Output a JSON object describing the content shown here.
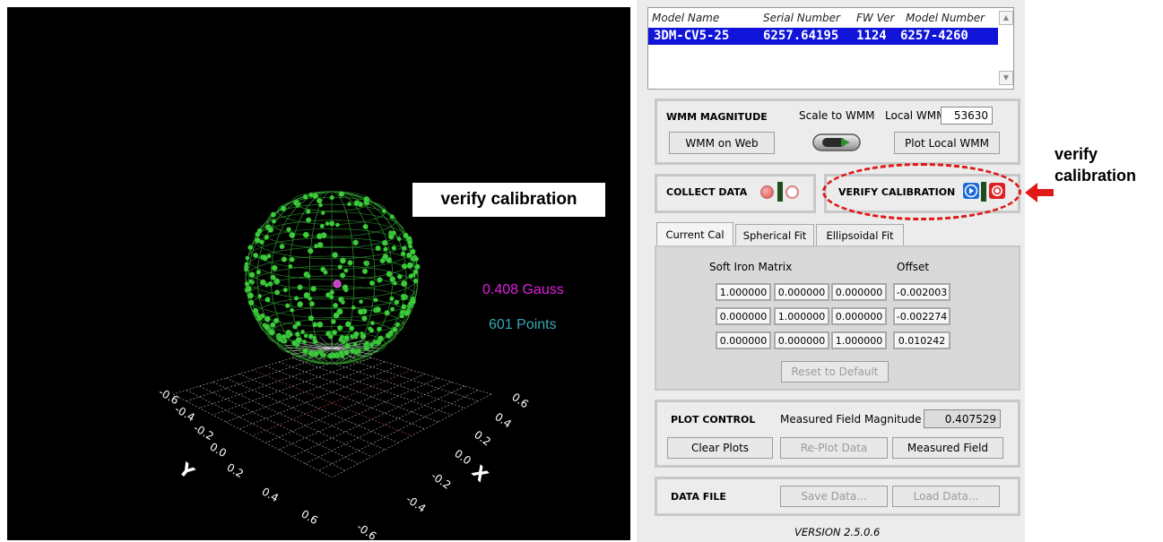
{
  "plot": {
    "callout": "verify calibration",
    "gauss": "0.408 Gauss",
    "points": "601 Points",
    "axis_y_label": "Y",
    "axis_x_label": "X",
    "y_ticks": [
      "-0.6",
      "-0.4",
      "-0.2",
      "0.0",
      "0.2",
      "0.4",
      "0.6"
    ],
    "x_ticks": [
      "0.6",
      "0.4",
      "0.2",
      "0.0",
      "-0.2",
      "-0.4",
      "-0.6"
    ]
  },
  "device_list": {
    "headers": [
      "Model Name",
      "Serial Number",
      "FW Ver",
      "Model Number"
    ],
    "row": [
      "3DM-CV5-25",
      "6257.64195",
      "1124",
      "6257-4260"
    ]
  },
  "wmm": {
    "title": "WMM MAGNITUDE",
    "scale_label": "Scale to WMM",
    "local_label": "Local WMM:",
    "local_value": "53630",
    "web_button": "WMM on Web",
    "plot_button": "Plot Local WMM"
  },
  "collect": {
    "title": "COLLECT DATA"
  },
  "verify": {
    "title": "VERIFY CALIBRATION"
  },
  "tabs": [
    "Current Cal",
    "Spherical Fit",
    "Ellipsoidal Fit"
  ],
  "current_cal": {
    "matrix_label": "Soft Iron Matrix",
    "offset_label": "Offset",
    "matrix": [
      [
        "1.000000",
        "0.000000",
        "0.000000"
      ],
      [
        "0.000000",
        "1.000000",
        "0.000000"
      ],
      [
        "0.000000",
        "0.000000",
        "1.000000"
      ]
    ],
    "offset": [
      "-0.002003",
      "-0.002274",
      "0.010242"
    ],
    "reset_button": "Reset to Default"
  },
  "plot_control": {
    "title": "PLOT CONTROL",
    "measured_label": "Measured Field Magnitude",
    "measured_value": "0.407529",
    "clear_button": "Clear Plots",
    "replot_button": "Re-Plot Data",
    "measured_button": "Measured Field"
  },
  "data_file": {
    "title": "DATA FILE",
    "save_button": "Save Data...",
    "load_button": "Load Data..."
  },
  "version": "VERSION  2.5.0.6",
  "annotation": {
    "right_note": "verify calibration"
  },
  "colors": {
    "sphere_points": "#3ccc3c",
    "gauss_text": "#e020e0",
    "points_text": "#36a8b8",
    "highlight": "#e01818",
    "selection": "#1014d8"
  }
}
